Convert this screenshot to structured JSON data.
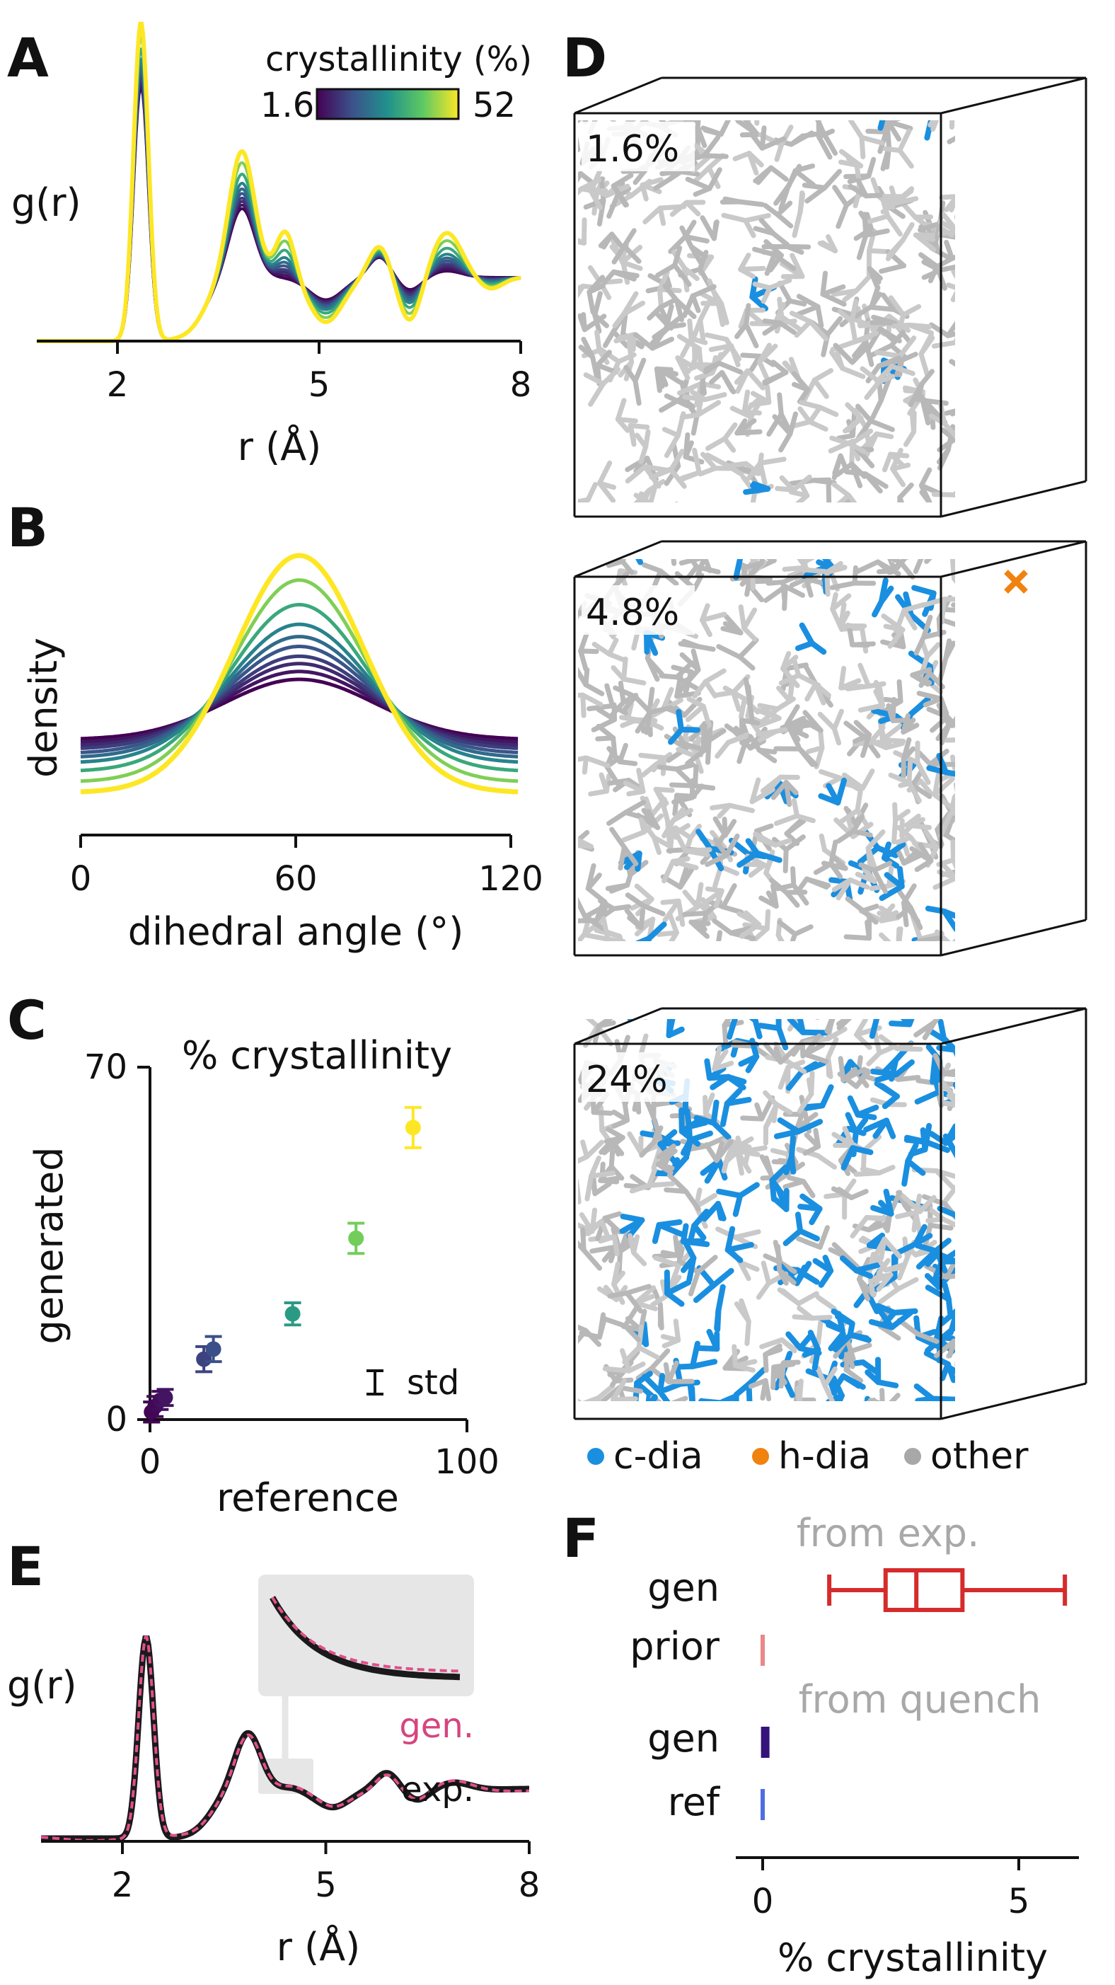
{
  "panels": {
    "A": "A",
    "B": "B",
    "C": "C",
    "D": "D",
    "E": "E",
    "F": "F"
  },
  "colors": {
    "cdia": "#1a8fe0",
    "hdia": "#f0820f",
    "other": "#a8a8a8",
    "gen_exp": "#d62b2b",
    "prior": "#e88888",
    "gen_quench": "#35137a",
    "ref": "#4f6ee0",
    "gen_line": "#e0508a",
    "exp_line": "#1a1a1a"
  },
  "chart_data": [
    {
      "id": "A",
      "type": "line",
      "xlabel": "r (Å)",
      "ylabel": "g(r)",
      "xlim": [
        0.8,
        8
      ],
      "xticks": [
        2,
        5,
        8
      ],
      "colorbar": {
        "title": "crystallinity (%)",
        "min_label": "1.6",
        "max_label": "52"
      },
      "series_crystallinity": [
        1.6,
        4.8,
        8,
        11,
        15,
        19,
        24,
        32,
        42,
        52
      ]
    },
    {
      "id": "B",
      "type": "line",
      "xlabel": "dihedral angle (°)",
      "ylabel": "density",
      "xlim": [
        0,
        120
      ],
      "xticks": [
        0,
        60,
        120
      ],
      "series_crystallinity": [
        1.6,
        4.8,
        8,
        11,
        15,
        19,
        24,
        32,
        42,
        52
      ]
    },
    {
      "id": "C",
      "type": "scatter",
      "title": "% crystallinity",
      "xlabel": "reference",
      "ylabel": "generated",
      "xlim": [
        0,
        100
      ],
      "ylim": [
        0,
        70
      ],
      "xticks": [
        0,
        100
      ],
      "yticks": [
        0,
        70
      ],
      "legend": "std",
      "points": [
        {
          "x": 0.5,
          "y": 1.5,
          "err": 2.0
        },
        {
          "x": 1.6,
          "y": 2.6,
          "err": 2.0
        },
        {
          "x": 3.2,
          "y": 3.8,
          "err": 1.8
        },
        {
          "x": 4.8,
          "y": 4.4,
          "err": 1.6
        },
        {
          "x": 17,
          "y": 12,
          "err": 2.5
        },
        {
          "x": 20,
          "y": 14,
          "err": 2.5
        },
        {
          "x": 45,
          "y": 21,
          "err": 2.2
        },
        {
          "x": 65,
          "y": 36,
          "err": 3.0
        },
        {
          "x": 83,
          "y": 58,
          "err": 4.0
        }
      ]
    },
    {
      "id": "E",
      "type": "line",
      "xlabel": "r (Å)",
      "ylabel": "g(r)",
      "xlim": [
        0.8,
        8
      ],
      "xticks": [
        2,
        5,
        8
      ],
      "series": [
        {
          "name": "gen."
        },
        {
          "name": "exp."
        }
      ]
    },
    {
      "id": "F",
      "type": "box",
      "xlabel": "% crystallinity",
      "xlim": [
        -0.4,
        6
      ],
      "xticks": [
        0,
        5
      ],
      "groups": [
        "from exp.",
        "from quench"
      ],
      "rows": [
        {
          "label": "gen",
          "group": "from exp.",
          "min": 1.3,
          "q1": 2.4,
          "median": 3.0,
          "q3": 3.9,
          "max": 5.9
        },
        {
          "label": "prior",
          "group": "from exp.",
          "value": 0.0
        },
        {
          "label": "gen",
          "group": "from quench",
          "value": 0.05
        },
        {
          "label": "ref",
          "group": "from quench",
          "value": 0.0
        }
      ]
    }
  ],
  "structures": [
    {
      "label": "1.6%"
    },
    {
      "label": "4.8%"
    },
    {
      "label": "24%"
    }
  ],
  "structure_legend": [
    {
      "label": "c-dia"
    },
    {
      "label": "h-dia"
    },
    {
      "label": "other"
    }
  ]
}
